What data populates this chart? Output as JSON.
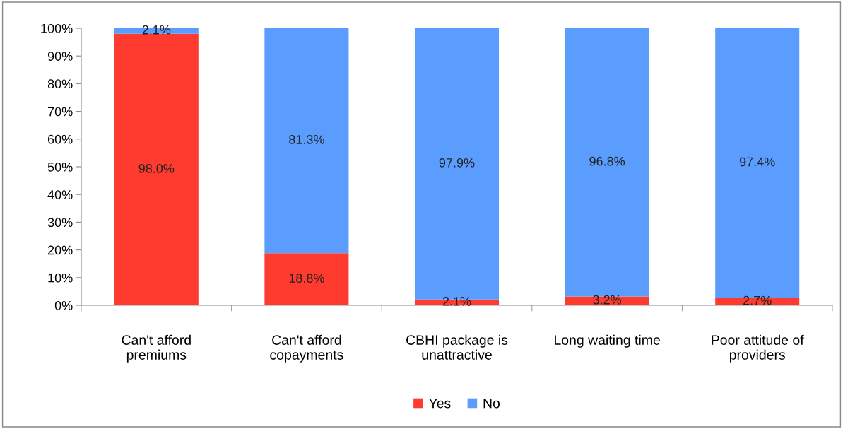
{
  "chart_data": {
    "type": "bar",
    "stacked": true,
    "categories": [
      "Can't afford\npremiums",
      "Can't afford\ncopayments",
      "CBHI package is\nunattractive",
      "Long waiting time",
      "Poor attitude of\nproviders"
    ],
    "series": [
      {
        "name": "Yes",
        "color": "#ff3b2f",
        "values": [
          98.0,
          18.8,
          2.1,
          3.2,
          2.7
        ],
        "value_labels": [
          "98.0%",
          "18.8%",
          "2.1%",
          "3.2%",
          "2.7%"
        ]
      },
      {
        "name": "No",
        "color": "#5b9dff",
        "values": [
          2.1,
          81.3,
          97.9,
          96.8,
          97.4
        ],
        "value_labels": [
          "2.1%",
          "81.3%",
          "97.9%",
          "96.8%",
          "97.4%"
        ]
      }
    ],
    "ylim": [
      0,
      100
    ],
    "yticks": [
      {
        "value": 0,
        "label": "0%"
      },
      {
        "value": 10,
        "label": "10%"
      },
      {
        "value": 20,
        "label": "20%"
      },
      {
        "value": 30,
        "label": "30%"
      },
      {
        "value": 40,
        "label": "40%"
      },
      {
        "value": 50,
        "label": "50%"
      },
      {
        "value": 60,
        "label": "60%"
      },
      {
        "value": 70,
        "label": "70%"
      },
      {
        "value": 80,
        "label": "80%"
      },
      {
        "value": 90,
        "label": "90%"
      },
      {
        "value": 100,
        "label": "100%"
      }
    ],
    "grid": false,
    "legend": "bottom"
  }
}
